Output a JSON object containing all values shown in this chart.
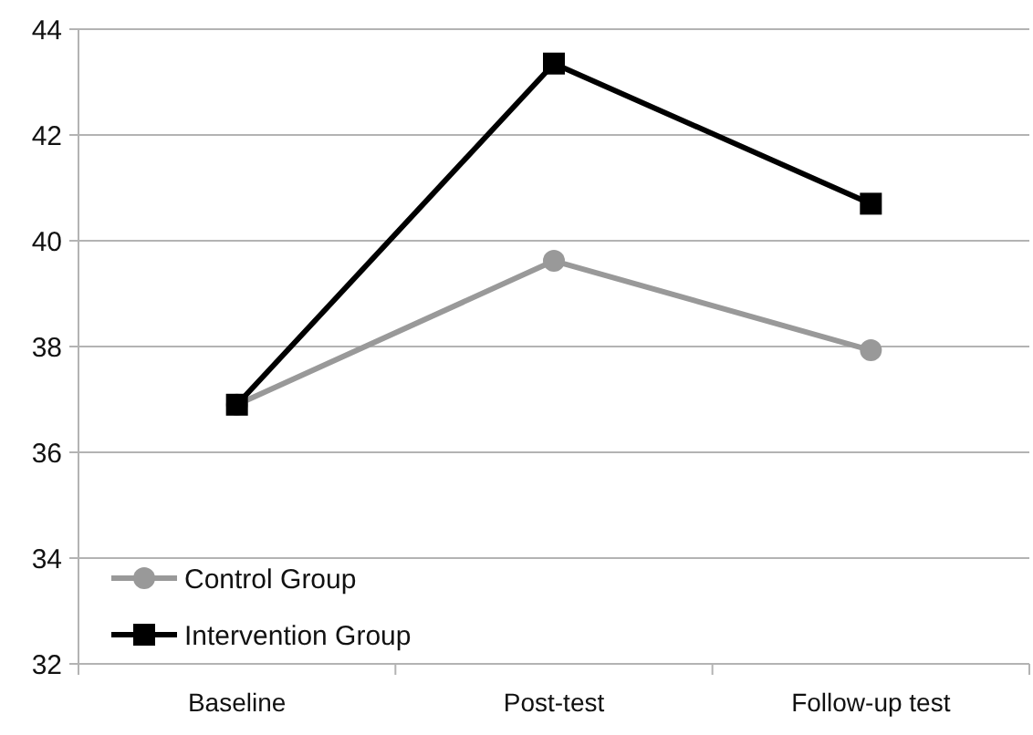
{
  "chart_data": {
    "type": "line",
    "categories": [
      "Baseline",
      "Post-test",
      "Follow-up test"
    ],
    "series": [
      {
        "name": "Control Group",
        "color": "#999999",
        "marker": "circle",
        "values": [
          36.9,
          39.62,
          37.93
        ]
      },
      {
        "name": "Intervention Group",
        "color": "#000000",
        "marker": "square",
        "values": [
          36.9,
          43.35,
          40.7
        ]
      }
    ],
    "ylim": [
      32,
      44
    ],
    "yticks": [
      32,
      34,
      36,
      38,
      40,
      42,
      44
    ],
    "grid": "y",
    "legend": "bottom left",
    "line_style": "solid"
  }
}
